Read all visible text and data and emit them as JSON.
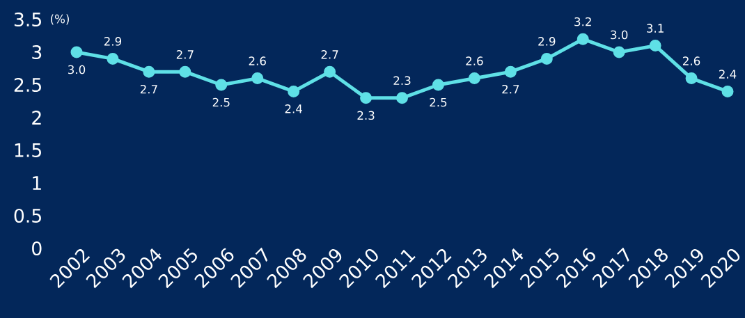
{
  "chart_data": {
    "type": "line",
    "ylabel": "(%)",
    "categories": [
      "2002",
      "2003",
      "2004",
      "2005",
      "2006",
      "2007",
      "2008",
      "2009",
      "2010",
      "2011",
      "2012",
      "2013",
      "2014",
      "2015",
      "2016",
      "2017",
      "2018",
      "2019",
      "2020"
    ],
    "values": [
      3.0,
      2.9,
      2.7,
      2.7,
      2.5,
      2.6,
      2.4,
      2.7,
      2.3,
      2.3,
      2.5,
      2.6,
      2.7,
      2.9,
      3.2,
      3.0,
      3.1,
      2.6,
      2.4
    ],
    "value_labels": [
      "3.0",
      "2.9",
      "2.7",
      "2.7",
      "2.5",
      "2.6",
      "2.4",
      "2.7",
      "2.3",
      "2.3",
      "2.5",
      "2.6",
      "2.7",
      "2.9",
      "3.2",
      "3.0",
      "3.1",
      "2.6",
      "2.4"
    ],
    "color": "#5fe0e6",
    "marker": "circle",
    "ylim": [
      0,
      3.5
    ],
    "yticks": [
      0,
      0.5,
      1,
      1.5,
      2,
      2.5,
      3,
      3.5
    ]
  }
}
